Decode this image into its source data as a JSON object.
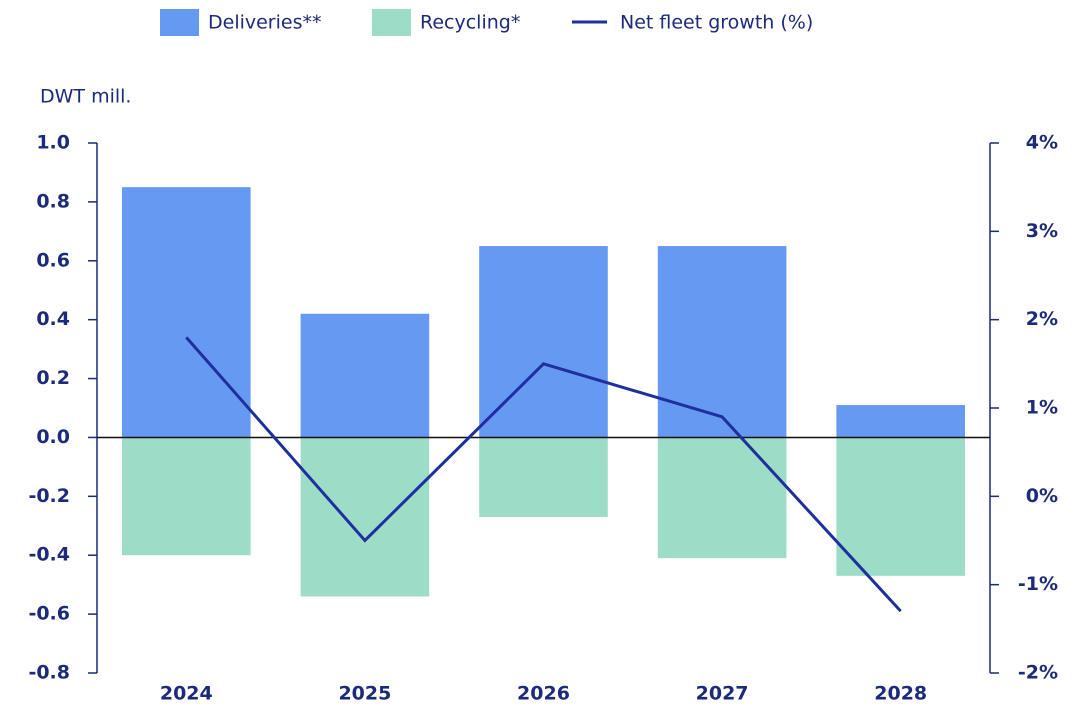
{
  "chart_data": {
    "type": "bar",
    "y_label": "DWT mill.",
    "categories": [
      "2024",
      "2025",
      "2026",
      "2027",
      "2028"
    ],
    "series": [
      {
        "name": "Deliveries**",
        "color": "#6699f2",
        "values": [
          0.85,
          0.42,
          0.65,
          0.65,
          0.11
        ]
      },
      {
        "name": "Recycling*",
        "color": "#9ddcc6",
        "values": [
          -0.4,
          -0.54,
          -0.27,
          -0.41,
          -0.47
        ]
      },
      {
        "name": "Net fleet growth (%)",
        "color": "#1f2f9e",
        "type": "line",
        "axis": "y2",
        "values": [
          1.8,
          -0.5,
          1.5,
          0.9,
          -1.3
        ]
      }
    ],
    "ylim": [
      -0.8,
      1.0
    ],
    "yticks": [
      {
        "value": 1,
        "label": "1.0"
      },
      0.8,
      0.6,
      0.4,
      0.2,
      {
        "value": 0,
        "label": "0.0"
      },
      -0.2,
      -0.4,
      -0.6,
      -0.8
    ],
    "y2lim": [
      -2,
      4
    ],
    "y2ticks": [
      {
        "value": 4,
        "label": "4%"
      },
      {
        "value": 3,
        "label": "3%"
      },
      {
        "value": 2,
        "label": "2%"
      },
      {
        "value": 1,
        "label": "1%"
      },
      {
        "value": 0,
        "label": "0%"
      },
      {
        "value": -1,
        "label": "-1%"
      },
      {
        "value": -2,
        "label": "-2%"
      }
    ],
    "legend": "top"
  }
}
